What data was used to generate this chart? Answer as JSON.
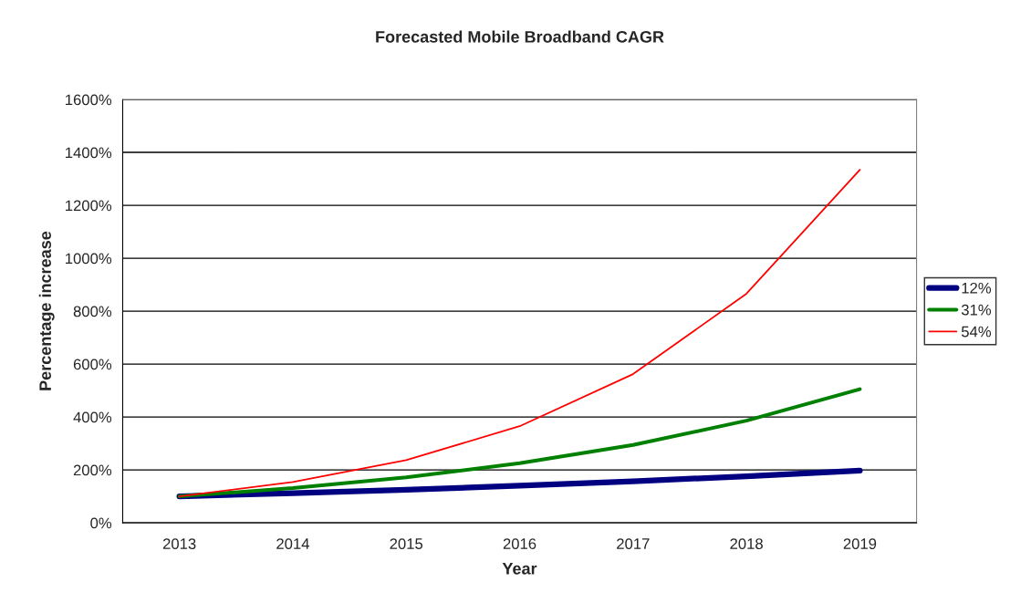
{
  "chart_data": {
    "type": "line",
    "title": "Forecasted Mobile Broadband CAGR",
    "xlabel": "Year",
    "ylabel": "Percentage increase",
    "categories": [
      "2013",
      "2014",
      "2015",
      "2016",
      "2017",
      "2018",
      "2019"
    ],
    "series": [
      {
        "name": "12%",
        "color": "#000080",
        "values": [
          100,
          112,
          125,
          140,
          157,
          176,
          197
        ]
      },
      {
        "name": "31%",
        "color": "#008000",
        "values": [
          100,
          131,
          172,
          225,
          294,
          386,
          505
        ]
      },
      {
        "name": "54%",
        "color": "#ff0000",
        "values": [
          100,
          154,
          237,
          365,
          562,
          866,
          1334
        ]
      }
    ],
    "ylim": [
      0,
      1600
    ],
    "yticks": [
      {
        "value": 0,
        "label": "0%"
      },
      {
        "value": 200,
        "label": "200%"
      },
      {
        "value": 400,
        "label": "400%"
      },
      {
        "value": 600,
        "label": "600%"
      },
      {
        "value": 800,
        "label": "800%"
      },
      {
        "value": 1000,
        "label": "1000%"
      },
      {
        "value": 1200,
        "label": "1200%"
      },
      {
        "value": 1400,
        "label": "1400%"
      },
      {
        "value": 1600,
        "label": "1600%"
      }
    ],
    "grid": "y",
    "legend": "right",
    "marker": "none",
    "line_style": "solid"
  }
}
